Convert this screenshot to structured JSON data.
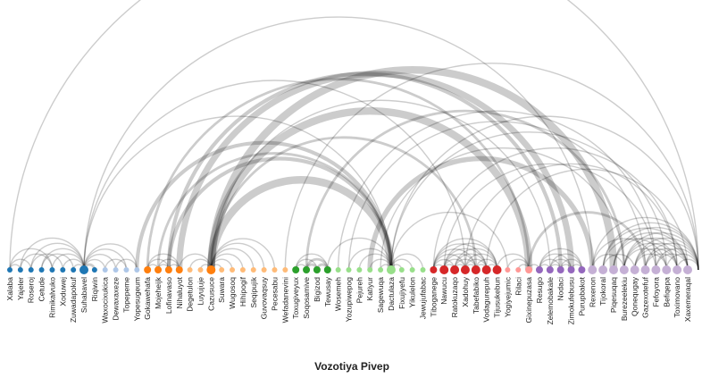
{
  "chart_data": {
    "type": "arc-diagram",
    "title": "Vozotiya Pivep",
    "groups": [
      {
        "color": "#1f77b4",
        "light": "#aec7e8"
      },
      {
        "color": "#ff7f0e",
        "light": "#ffbb78"
      },
      {
        "color": "#2ca02c",
        "light": "#98df8a"
      },
      {
        "color": "#d62728",
        "light": "#ff9896"
      },
      {
        "color": "#9467bd",
        "light": "#c5b0d5"
      }
    ],
    "nodes": [
      {
        "label": "Xalaba",
        "group": 0,
        "shade": "dark",
        "size": 2
      },
      {
        "label": "Yajeler",
        "group": 0,
        "shade": "dark",
        "size": 2
      },
      {
        "label": "Roseroj",
        "group": 0,
        "shade": "dark",
        "size": 2
      },
      {
        "label": "Cetude",
        "group": 0,
        "shade": "dark",
        "size": 2
      },
      {
        "label": "Rimikalvuko",
        "group": 0,
        "shade": "dark",
        "size": 2
      },
      {
        "label": "Xoduwej",
        "group": 0,
        "shade": "dark",
        "size": 2
      },
      {
        "label": "Zuwadapokuf",
        "group": 0,
        "shade": "dark",
        "size": 2
      },
      {
        "label": "Suhabavel",
        "group": 0,
        "shade": "dark",
        "size": 4
      },
      {
        "label": "Riqiwin",
        "group": 0,
        "shade": "dark",
        "size": 2
      },
      {
        "label": "Waxocixukica",
        "group": 0,
        "shade": "light",
        "size": 2
      },
      {
        "label": "Dewaxaxeze",
        "group": 0,
        "shade": "light",
        "size": 2
      },
      {
        "label": "Topepeme",
        "group": 0,
        "shade": "light",
        "size": 2
      },
      {
        "label": "Yopesugeum",
        "group": 0,
        "shade": "light",
        "size": 2
      },
      {
        "label": "Gokawehafa",
        "group": 1,
        "shade": "dark",
        "size": 3
      },
      {
        "label": "Mojeheijk",
        "group": 1,
        "shade": "dark",
        "size": 3
      },
      {
        "label": "Lofinavaso",
        "group": 1,
        "shade": "dark",
        "size": 3
      },
      {
        "label": "Nihaluyot",
        "group": 1,
        "shade": "dark",
        "size": 3
      },
      {
        "label": "Degetulon",
        "group": 1,
        "shade": "light",
        "size": 2
      },
      {
        "label": "Luyujuje",
        "group": 1,
        "shade": "light",
        "size": 2
      },
      {
        "label": "Cazusuce",
        "group": 1,
        "shade": "dark",
        "size": 4
      },
      {
        "label": "Suwara",
        "group": 1,
        "shade": "light",
        "size": 2
      },
      {
        "label": "Wugosoq",
        "group": 1,
        "shade": "light",
        "size": 2
      },
      {
        "label": "Hihipogif",
        "group": 1,
        "shade": "light",
        "size": 2
      },
      {
        "label": "Seqipujik",
        "group": 1,
        "shade": "light",
        "size": 2
      },
      {
        "label": "Guvovaqsuy",
        "group": 1,
        "shade": "light",
        "size": 2
      },
      {
        "label": "Pecesabu",
        "group": 1,
        "shade": "light",
        "size": 2
      },
      {
        "label": "Wefadanevini",
        "group": 1,
        "shade": "light",
        "size": 2
      },
      {
        "label": "Toxugiveyux",
        "group": 2,
        "shade": "dark",
        "size": 3
      },
      {
        "label": "Soqosamive",
        "group": 2,
        "shade": "dark",
        "size": 3
      },
      {
        "label": "Bigizod",
        "group": 2,
        "shade": "dark",
        "size": 3
      },
      {
        "label": "Tewusay",
        "group": 2,
        "shade": "dark",
        "size": 3
      },
      {
        "label": "Wosemeh",
        "group": 2,
        "shade": "light",
        "size": 2
      },
      {
        "label": "Yozupiwepog",
        "group": 2,
        "shade": "light",
        "size": 2
      },
      {
        "label": "Pejureh",
        "group": 2,
        "shade": "light",
        "size": 2
      },
      {
        "label": "Katiyur",
        "group": 2,
        "shade": "light",
        "size": 2
      },
      {
        "label": "Sagewuqa",
        "group": 2,
        "shade": "light",
        "size": 2
      },
      {
        "label": "Dactulaza",
        "group": 2,
        "shade": "light",
        "size": 4
      },
      {
        "label": "Fixujiyefu",
        "group": 2,
        "shade": "light",
        "size": 2
      },
      {
        "label": "Yikulelon",
        "group": 2,
        "shade": "light",
        "size": 2
      },
      {
        "label": "Jewujufabac",
        "group": 2,
        "shade": "light",
        "size": 2
      },
      {
        "label": "Tiboganege",
        "group": 3,
        "shade": "dark",
        "size": 3
      },
      {
        "label": "Nawucu",
        "group": 3,
        "shade": "dark",
        "size": 4
      },
      {
        "label": "Ratokuzaqo",
        "group": 3,
        "shade": "dark",
        "size": 4
      },
      {
        "label": "Xadohuy",
        "group": 3,
        "shade": "dark",
        "size": 4
      },
      {
        "label": "Tabefabiko",
        "group": 3,
        "shade": "dark",
        "size": 4
      },
      {
        "label": "Vodagurepuh",
        "group": 3,
        "shade": "dark",
        "size": 4
      },
      {
        "label": "Tijusukebun",
        "group": 3,
        "shade": "dark",
        "size": 4
      },
      {
        "label": "Yogiyejumic",
        "group": 3,
        "shade": "light",
        "size": 2
      },
      {
        "label": "Rilaci",
        "group": 3,
        "shade": "light",
        "size": 2
      },
      {
        "label": "Gixinepuzasa",
        "group": 3,
        "shade": "light",
        "size": 3
      },
      {
        "label": "Resugo",
        "group": 4,
        "shade": "dark",
        "size": 3
      },
      {
        "label": "Zelemobakale",
        "group": 4,
        "shade": "dark",
        "size": 3
      },
      {
        "label": "Nodaci",
        "group": 4,
        "shade": "dark",
        "size": 3
      },
      {
        "label": "Zimokufebusu",
        "group": 4,
        "shade": "dark",
        "size": 3
      },
      {
        "label": "Purupbakot",
        "group": 4,
        "shade": "dark",
        "size": 3
      },
      {
        "label": "Rexenon",
        "group": 4,
        "shade": "light",
        "size": 4
      },
      {
        "label": "Tijokoral",
        "group": 4,
        "shade": "light",
        "size": 4
      },
      {
        "label": "Piqesuqaq",
        "group": 4,
        "shade": "light",
        "size": 4
      },
      {
        "label": "Burezeelekiu",
        "group": 4,
        "shade": "light",
        "size": 4
      },
      {
        "label": "Qonequgay",
        "group": 4,
        "shade": "light",
        "size": 4
      },
      {
        "label": "Gazexotefuf",
        "group": 4,
        "shade": "light",
        "size": 4
      },
      {
        "label": "Fefoyora",
        "group": 4,
        "shade": "light",
        "size": 4
      },
      {
        "label": "Befiqepa",
        "group": 4,
        "shade": "light",
        "size": 4
      },
      {
        "label": "Toximovano",
        "group": 4,
        "shade": "light",
        "size": 4
      },
      {
        "label": "Xaxemeraqal",
        "group": 4,
        "shade": "light",
        "size": 4
      }
    ],
    "links": [
      {
        "source": 0,
        "target": 65,
        "weight": 1
      },
      {
        "source": 7,
        "target": 36,
        "weight": 1
      },
      {
        "source": 7,
        "target": 55,
        "weight": 1
      },
      {
        "source": 7,
        "target": 43,
        "weight": 1
      },
      {
        "source": 19,
        "target": 57,
        "weight": 6
      },
      {
        "source": 19,
        "target": 49,
        "weight": 6
      },
      {
        "source": 19,
        "target": 36,
        "weight": 6
      },
      {
        "source": 19,
        "target": 44,
        "weight": 2
      },
      {
        "source": 19,
        "target": 51,
        "weight": 1
      },
      {
        "source": 12,
        "target": 36,
        "weight": 3
      },
      {
        "source": 14,
        "target": 36,
        "weight": 2
      },
      {
        "source": 15,
        "target": 36,
        "weight": 3
      },
      {
        "source": 16,
        "target": 53,
        "weight": 5
      },
      {
        "source": 15,
        "target": 52,
        "weight": 3
      },
      {
        "source": 13,
        "target": 49,
        "weight": 2
      },
      {
        "source": 26,
        "target": 65,
        "weight": 1
      },
      {
        "source": 28,
        "target": 58,
        "weight": 2
      },
      {
        "source": 32,
        "target": 60,
        "weight": 1
      },
      {
        "source": 36,
        "target": 65,
        "weight": 1
      },
      {
        "source": 36,
        "target": 62,
        "weight": 1
      },
      {
        "source": 36,
        "target": 47,
        "weight": 1
      },
      {
        "source": 31,
        "target": 61,
        "weight": 1
      },
      {
        "source": 34,
        "target": 55,
        "weight": 4
      },
      {
        "source": 35,
        "target": 58,
        "weight": 1
      },
      {
        "source": 40,
        "target": 63,
        "weight": 1
      },
      {
        "source": 41,
        "target": 61,
        "weight": 1
      },
      {
        "source": 43,
        "target": 63,
        "weight": 1
      },
      {
        "source": 49,
        "target": 60,
        "weight": 2
      },
      {
        "source": 45,
        "target": 64,
        "weight": 1
      },
      {
        "source": 0,
        "target": 1,
        "weight": 1
      },
      {
        "source": 0,
        "target": 2,
        "weight": 1
      },
      {
        "source": 0,
        "target": 4,
        "weight": 1
      },
      {
        "source": 1,
        "target": 4,
        "weight": 1
      },
      {
        "source": 2,
        "target": 5,
        "weight": 1
      },
      {
        "source": 3,
        "target": 6,
        "weight": 1
      },
      {
        "source": 1,
        "target": 7,
        "weight": 1
      },
      {
        "source": 2,
        "target": 7,
        "weight": 1
      },
      {
        "source": 3,
        "target": 7,
        "weight": 1
      },
      {
        "source": 4,
        "target": 7,
        "weight": 1
      },
      {
        "source": 5,
        "target": 7,
        "weight": 1
      },
      {
        "source": 6,
        "target": 7,
        "weight": 1
      },
      {
        "source": 7,
        "target": 8,
        "weight": 2
      },
      {
        "source": 7,
        "target": 9,
        "weight": 1
      },
      {
        "source": 7,
        "target": 10,
        "weight": 1
      },
      {
        "source": 7,
        "target": 11,
        "weight": 1
      },
      {
        "source": 7,
        "target": 12,
        "weight": 1
      },
      {
        "source": 9,
        "target": 11,
        "weight": 1
      },
      {
        "source": 10,
        "target": 12,
        "weight": 1
      },
      {
        "source": 13,
        "target": 14,
        "weight": 1
      },
      {
        "source": 13,
        "target": 15,
        "weight": 1
      },
      {
        "source": 13,
        "target": 16,
        "weight": 1
      },
      {
        "source": 14,
        "target": 15,
        "weight": 1
      },
      {
        "source": 14,
        "target": 16,
        "weight": 1
      },
      {
        "source": 15,
        "target": 16,
        "weight": 1
      },
      {
        "source": 16,
        "target": 19,
        "weight": 1
      },
      {
        "source": 17,
        "target": 19,
        "weight": 1
      },
      {
        "source": 18,
        "target": 19,
        "weight": 1
      },
      {
        "source": 19,
        "target": 20,
        "weight": 1
      },
      {
        "source": 19,
        "target": 21,
        "weight": 1
      },
      {
        "source": 19,
        "target": 22,
        "weight": 1
      },
      {
        "source": 19,
        "target": 23,
        "weight": 1
      },
      {
        "source": 19,
        "target": 24,
        "weight": 1
      },
      {
        "source": 19,
        "target": 25,
        "weight": 1
      },
      {
        "source": 27,
        "target": 28,
        "weight": 1
      },
      {
        "source": 27,
        "target": 29,
        "weight": 1
      },
      {
        "source": 27,
        "target": 30,
        "weight": 1
      },
      {
        "source": 28,
        "target": 29,
        "weight": 2
      },
      {
        "source": 28,
        "target": 30,
        "weight": 2
      },
      {
        "source": 29,
        "target": 30,
        "weight": 2
      },
      {
        "source": 30,
        "target": 36,
        "weight": 1
      },
      {
        "source": 32,
        "target": 36,
        "weight": 1
      },
      {
        "source": 33,
        "target": 36,
        "weight": 1
      },
      {
        "source": 34,
        "target": 36,
        "weight": 1
      },
      {
        "source": 35,
        "target": 36,
        "weight": 1
      },
      {
        "source": 36,
        "target": 37,
        "weight": 1
      },
      {
        "source": 36,
        "target": 38,
        "weight": 1
      },
      {
        "source": 36,
        "target": 39,
        "weight": 1
      },
      {
        "source": 40,
        "target": 41,
        "weight": 1
      },
      {
        "source": 40,
        "target": 42,
        "weight": 1
      },
      {
        "source": 40,
        "target": 43,
        "weight": 1
      },
      {
        "source": 40,
        "target": 44,
        "weight": 1
      },
      {
        "source": 40,
        "target": 45,
        "weight": 1
      },
      {
        "source": 40,
        "target": 46,
        "weight": 1
      },
      {
        "source": 41,
        "target": 42,
        "weight": 1
      },
      {
        "source": 41,
        "target": 43,
        "weight": 1
      },
      {
        "source": 41,
        "target": 44,
        "weight": 1
      },
      {
        "source": 41,
        "target": 45,
        "weight": 1
      },
      {
        "source": 41,
        "target": 46,
        "weight": 1
      },
      {
        "source": 42,
        "target": 43,
        "weight": 1
      },
      {
        "source": 42,
        "target": 44,
        "weight": 1
      },
      {
        "source": 42,
        "target": 45,
        "weight": 1
      },
      {
        "source": 42,
        "target": 46,
        "weight": 1
      },
      {
        "source": 43,
        "target": 44,
        "weight": 1
      },
      {
        "source": 43,
        "target": 45,
        "weight": 1
      },
      {
        "source": 43,
        "target": 46,
        "weight": 1
      },
      {
        "source": 44,
        "target": 45,
        "weight": 1
      },
      {
        "source": 44,
        "target": 46,
        "weight": 1
      },
      {
        "source": 45,
        "target": 46,
        "weight": 1
      },
      {
        "source": 46,
        "target": 49,
        "weight": 1
      },
      {
        "source": 47,
        "target": 49,
        "weight": 1
      },
      {
        "source": 48,
        "target": 49,
        "weight": 1
      },
      {
        "source": 49,
        "target": 50,
        "weight": 1
      },
      {
        "source": 50,
        "target": 51,
        "weight": 1
      },
      {
        "source": 50,
        "target": 52,
        "weight": 1
      },
      {
        "source": 50,
        "target": 53,
        "weight": 1
      },
      {
        "source": 50,
        "target": 54,
        "weight": 1
      },
      {
        "source": 51,
        "target": 52,
        "weight": 1
      },
      {
        "source": 51,
        "target": 53,
        "weight": 1
      },
      {
        "source": 51,
        "target": 54,
        "weight": 1
      },
      {
        "source": 52,
        "target": 53,
        "weight": 1
      },
      {
        "source": 52,
        "target": 54,
        "weight": 1
      },
      {
        "source": 53,
        "target": 54,
        "weight": 1
      },
      {
        "source": 55,
        "target": 65,
        "weight": 1
      },
      {
        "source": 56,
        "target": 64,
        "weight": 1
      },
      {
        "source": 56,
        "target": 65,
        "weight": 1
      },
      {
        "source": 57,
        "target": 63,
        "weight": 1
      },
      {
        "source": 57,
        "target": 64,
        "weight": 1
      },
      {
        "source": 57,
        "target": 65,
        "weight": 1
      },
      {
        "source": 58,
        "target": 62,
        "weight": 1
      },
      {
        "source": 58,
        "target": 63,
        "weight": 1
      },
      {
        "source": 58,
        "target": 64,
        "weight": 1
      },
      {
        "source": 58,
        "target": 65,
        "weight": 1
      },
      {
        "source": 59,
        "target": 62,
        "weight": 1
      },
      {
        "source": 59,
        "target": 63,
        "weight": 1
      },
      {
        "source": 59,
        "target": 64,
        "weight": 1
      },
      {
        "source": 59,
        "target": 65,
        "weight": 1
      },
      {
        "source": 60,
        "target": 63,
        "weight": 1
      },
      {
        "source": 60,
        "target": 64,
        "weight": 1
      },
      {
        "source": 60,
        "target": 65,
        "weight": 1
      },
      {
        "source": 61,
        "target": 64,
        "weight": 1
      },
      {
        "source": 61,
        "target": 65,
        "weight": 1
      },
      {
        "source": 62,
        "target": 65,
        "weight": 1
      },
      {
        "source": 63,
        "target": 65,
        "weight": 1
      },
      {
        "source": 55,
        "target": 58,
        "weight": 1
      },
      {
        "source": 56,
        "target": 59,
        "weight": 1
      },
      {
        "source": 55,
        "target": 61,
        "weight": 1
      },
      {
        "source": 56,
        "target": 62,
        "weight": 1
      }
    ]
  }
}
